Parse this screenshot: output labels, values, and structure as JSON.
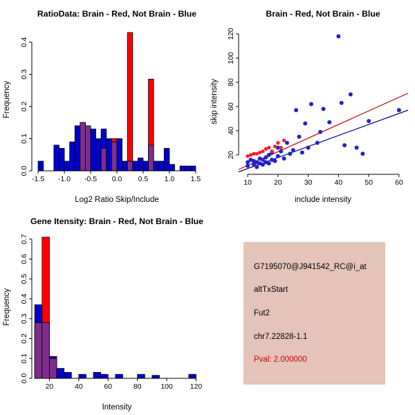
{
  "colors": {
    "background": "#FFFFFF",
    "hist_blue": "#0000CD",
    "hist_red": "#FF0000",
    "overlap_purple": "#7D2E8D",
    "scatter_blue": "#2222CC",
    "scatter_red": "#EE2222",
    "fit_line_red": "#CC0000",
    "fit_line_blue": "#00008B",
    "axis_color": "#000000",
    "info_bg": "#E4C4B9",
    "pval_color": "#CC0000"
  },
  "chart_data": [
    {
      "type": "bar",
      "title": "RatioData: Brain - Red, Not Brain - Blue",
      "xlabel": "Log2 Ratio Skip/Include",
      "ylabel": "Frequency",
      "bin_start": -1.5,
      "bin_width": 0.1,
      "xlim": [
        -1.62,
        1.62
      ],
      "ylim": [
        0,
        0.445
      ],
      "xticks": [
        -1.5,
        -1.0,
        -0.5,
        0.0,
        0.5,
        1.0,
        1.5
      ],
      "xtick_labels": [
        "-1.5",
        "-1.0",
        "-0.5",
        "0.0",
        "0.5",
        "1.0",
        "1.5"
      ],
      "yticks": [
        0,
        0.1,
        0.2,
        0.3,
        0.4
      ],
      "ytick_labels": [
        "0.0",
        "0.1",
        "0.2",
        "0.3",
        "0.4"
      ],
      "grid": false,
      "legend": "none",
      "series": [
        {
          "name": "Not Brain",
          "color": "#0000CD",
          "values": [
            0.03,
            0,
            0,
            0.08,
            0.07,
            0.03,
            0.09,
            0.14,
            0.15,
            0.14,
            0.13,
            0.1,
            0.13,
            0.1,
            0.09,
            0.1,
            0.03,
            0.03,
            0.03,
            0.04,
            0.03,
            0.08,
            0.03,
            0.03,
            0.07,
            0.02,
            0,
            0.015,
            0.015,
            0.015
          ]
        },
        {
          "name": "Brain",
          "color": "#FF0000",
          "values": [
            0,
            0,
            0,
            0,
            0,
            0,
            0,
            0,
            0.15,
            0.14,
            0,
            0,
            0.07,
            0,
            0.1,
            0,
            0,
            0.43,
            0,
            0,
            0,
            0.285,
            0,
            0,
            0,
            0,
            0,
            0,
            0,
            0
          ]
        }
      ]
    },
    {
      "type": "scatter",
      "title": "Brain - Red, Not Brain - Blue",
      "xlabel": "include intensity",
      "ylabel": "skip intensity",
      "xlim": [
        7,
        63
      ],
      "ylim": [
        4,
        124
      ],
      "xticks": [
        10,
        20,
        30,
        40,
        50,
        60
      ],
      "xtick_labels": [
        "10",
        "20",
        "30",
        "40",
        "50",
        "60"
      ],
      "yticks": [
        20,
        40,
        60,
        80,
        100,
        120
      ],
      "ytick_labels": [
        "20",
        "40",
        "60",
        "80",
        "100",
        "120"
      ],
      "grid": false,
      "legend": "none",
      "series": [
        {
          "name": "Not Brain",
          "color": "#2222CC",
          "points": [
            [
              10,
              14
            ],
            [
              10,
              11
            ],
            [
              11,
              16
            ],
            [
              12,
              12
            ],
            [
              12,
              15
            ],
            [
              13,
              10
            ],
            [
              13,
              14
            ],
            [
              14,
              13
            ],
            [
              14,
              17
            ],
            [
              15,
              12
            ],
            [
              15,
              16
            ],
            [
              16,
              14
            ],
            [
              16,
              18
            ],
            [
              17,
              13
            ],
            [
              17,
              20
            ],
            [
              18,
              16
            ],
            [
              18,
              22
            ],
            [
              19,
              15
            ],
            [
              20,
              19
            ],
            [
              20,
              26
            ],
            [
              21,
              23
            ],
            [
              22,
              17
            ],
            [
              23,
              30
            ],
            [
              24,
              21
            ],
            [
              25,
              24
            ],
            [
              26,
              57
            ],
            [
              27,
              35
            ],
            [
              28,
              22
            ],
            [
              29,
              46
            ],
            [
              30,
              26
            ],
            [
              31,
              62
            ],
            [
              33,
              30
            ],
            [
              34,
              39
            ],
            [
              35,
              58
            ],
            [
              37,
              47
            ],
            [
              40,
              118
            ],
            [
              41,
              63
            ],
            [
              42,
              28
            ],
            [
              44,
              70
            ],
            [
              46,
              26
            ],
            [
              48,
              21
            ],
            [
              50,
              48
            ],
            [
              60,
              57
            ]
          ]
        },
        {
          "name": "Brain",
          "color": "#EE2222",
          "points": [
            [
              10,
              19
            ],
            [
              11,
              20
            ],
            [
              12,
              21
            ],
            [
              13,
              21
            ],
            [
              14,
              22
            ],
            [
              15,
              23
            ],
            [
              16,
              25
            ],
            [
              17,
              26
            ],
            [
              18,
              23
            ],
            [
              19,
              27
            ],
            [
              20,
              30
            ],
            [
              21,
              26
            ],
            [
              22,
              32
            ]
          ]
        }
      ],
      "lines": [
        {
          "name": "brain-fit",
          "color": "#CC0000",
          "x1": 7,
          "y1": 8,
          "x2": 63,
          "y2": 71
        },
        {
          "name": "notbrain-fit",
          "color": "#00008B",
          "x1": 7,
          "y1": 6,
          "x2": 63,
          "y2": 57
        }
      ]
    },
    {
      "type": "bar",
      "title": "Gene Itensity: Brain - Red, Not Brain - Blue",
      "xlabel": "Intensity",
      "ylabel": "Frequency",
      "bin_start": 10,
      "bin_width": 5,
      "xlim": [
        8,
        124
      ],
      "ylim": [
        0,
        0.72
      ],
      "xticks": [
        20,
        40,
        60,
        80,
        100,
        120
      ],
      "xtick_labels": [
        "20",
        "40",
        "60",
        "80",
        "100",
        "120"
      ],
      "yticks": [
        0,
        0.1,
        0.2,
        0.3,
        0.4,
        0.5,
        0.6,
        0.7
      ],
      "ytick_labels": [
        "0.0",
        "0.1",
        "0.2",
        "0.3",
        "0.4",
        "0.5",
        "0.6",
        "0.7"
      ],
      "grid": false,
      "legend": "none",
      "series": [
        {
          "name": "Not Brain",
          "color": "#0000CD",
          "values": [
            0.37,
            0.28,
            0.11,
            0.05,
            0.03,
            0,
            0.02,
            0,
            0.03,
            0.02,
            0,
            0.02,
            0,
            0,
            0.02,
            0,
            0.015,
            0,
            0,
            0,
            0,
            0.02
          ]
        },
        {
          "name": "Brain",
          "color": "#FF0000",
          "values": [
            0.28,
            0.71,
            0.1,
            0,
            0,
            0,
            0,
            0,
            0,
            0,
            0,
            0,
            0,
            0,
            0,
            0,
            0,
            0,
            0,
            0,
            0,
            0
          ]
        }
      ]
    }
  ],
  "info_panel": {
    "probe_id": "G7195070@J941542_RC@i_at",
    "event_type": "altTxStart",
    "gene": "Fut2",
    "location": "chr7.22828-1.1",
    "pval": "Pval: 2.000000"
  }
}
